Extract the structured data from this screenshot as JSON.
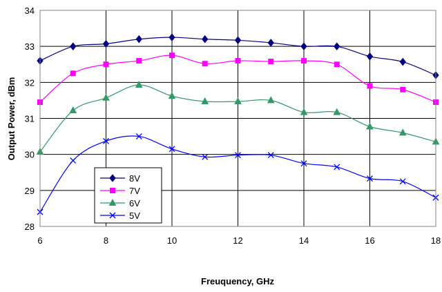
{
  "chart_data": {
    "type": "line",
    "title": "",
    "xlabel": "Freuquency, GHz",
    "ylabel": "Output Power, dBm",
    "xlim": [
      6,
      18
    ],
    "ylim": [
      28,
      34
    ],
    "xticks": [
      "6",
      "8",
      "10",
      "12",
      "14",
      "16",
      "18"
    ],
    "yticks": [
      "28",
      "29",
      "30",
      "31",
      "32",
      "33",
      "34"
    ],
    "grid": true,
    "legend_position": "bottom-left",
    "x": [
      6,
      7,
      8,
      9,
      10,
      11,
      12,
      13,
      14,
      15,
      16,
      17,
      18
    ],
    "series": [
      {
        "name": "8V",
        "color": "#000080",
        "marker": "diamond",
        "values": [
          32.6,
          33.0,
          33.07,
          33.2,
          33.25,
          33.2,
          33.17,
          33.1,
          33.0,
          33.0,
          32.72,
          32.57,
          32.2
        ]
      },
      {
        "name": "7V",
        "color": "#FF00FF",
        "marker": "square",
        "values": [
          31.45,
          32.25,
          32.5,
          32.6,
          32.75,
          32.52,
          32.6,
          32.58,
          32.6,
          32.5,
          31.9,
          31.8,
          31.45
        ]
      },
      {
        "name": "6V",
        "color": "#339966",
        "marker": "triangle",
        "values": [
          30.07,
          31.22,
          31.57,
          31.93,
          31.62,
          31.47,
          31.47,
          31.5,
          31.17,
          31.17,
          30.77,
          30.6,
          30.35
        ]
      },
      {
        "name": "5V",
        "color": "#0000FF",
        "marker": "x",
        "values": [
          28.4,
          29.83,
          30.37,
          30.5,
          30.15,
          29.93,
          29.98,
          29.98,
          29.75,
          29.65,
          29.33,
          29.25,
          28.8
        ]
      }
    ]
  }
}
